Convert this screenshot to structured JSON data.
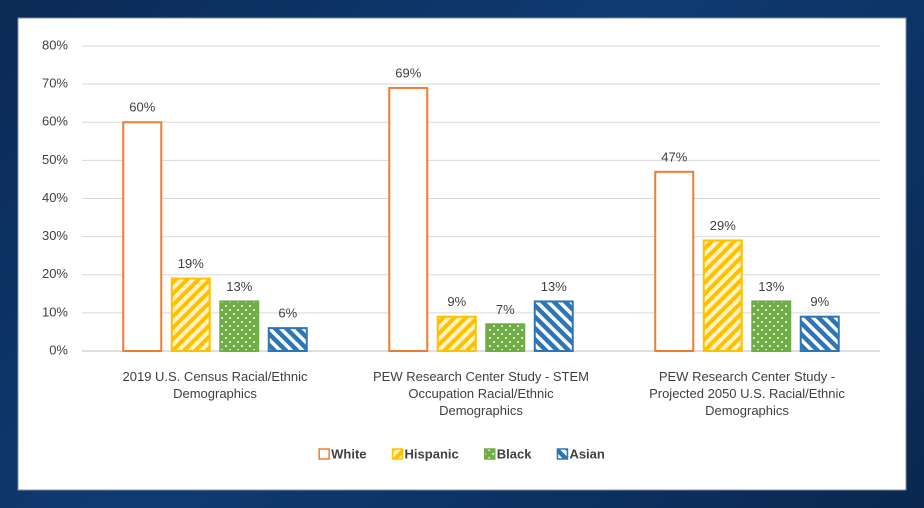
{
  "chart_data": {
    "type": "bar",
    "categories": [
      "2019 U.S. Census Racial/Ethnic Demographics",
      "PEW Research Center Study - STEM Occupation Racial/Ethnic Demographics",
      "PEW Research Center Study - Projected 2050 U.S. Racial/Ethnic Demographics"
    ],
    "series": [
      {
        "name": "White",
        "color": "#ed7d31",
        "pattern": "none",
        "values": [
          60,
          69,
          47
        ],
        "value_labels": [
          "60%",
          "69%",
          "47%"
        ]
      },
      {
        "name": "Hispanic",
        "color": "#ffc000",
        "pattern": "stripes",
        "values": [
          19,
          9,
          29
        ],
        "value_labels": [
          "19%",
          "9%",
          "29%"
        ]
      },
      {
        "name": "Black",
        "color": "#70ad47",
        "pattern": "dots",
        "values": [
          13,
          7,
          13
        ],
        "value_labels": [
          "13%",
          "7%",
          "13%"
        ]
      },
      {
        "name": "Asian",
        "color": "#2e75b6",
        "pattern": "back-stripes",
        "values": [
          6,
          13,
          9
        ],
        "value_labels": [
          "6%",
          "13%",
          "9%"
        ]
      }
    ],
    "ylim": [
      0,
      80
    ],
    "yticks": [
      {
        "value": 0,
        "label": "0%"
      },
      {
        "value": 10,
        "label": "10%"
      },
      {
        "value": 20,
        "label": "20%"
      },
      {
        "value": 30,
        "label": "30%"
      },
      {
        "value": 40,
        "label": "40%"
      },
      {
        "value": 50,
        "label": "50%"
      },
      {
        "value": 60,
        "label": "60%"
      },
      {
        "value": 70,
        "label": "70%"
      },
      {
        "value": 80,
        "label": "80%"
      }
    ],
    "grid": true,
    "legend": "bottom"
  }
}
